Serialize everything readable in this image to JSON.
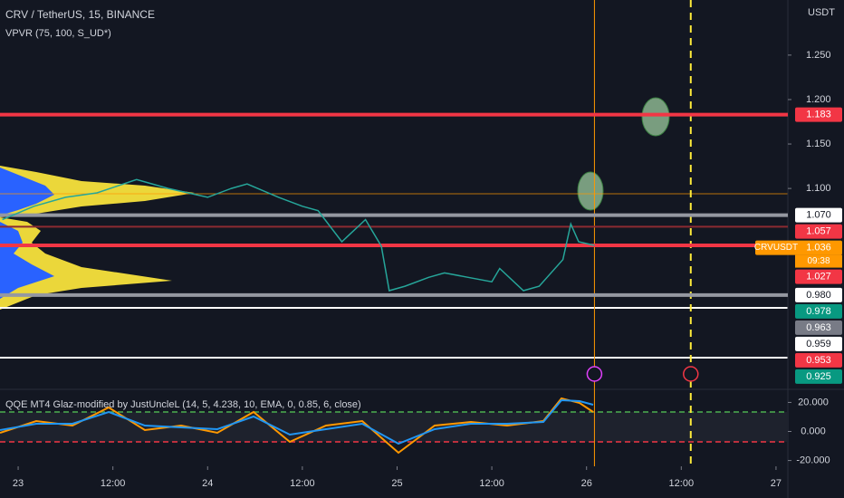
{
  "chart_data": {
    "type": "line",
    "title": "CRV / TetherUS, 15, BINANCE",
    "subtitle": "VPVR (75, 100, S_UD*)",
    "currency": "USDT",
    "x": [
      -2,
      2,
      6,
      10,
      15,
      19,
      24,
      27,
      29,
      33,
      36,
      38,
      41,
      44,
      46,
      47,
      49,
      52,
      54,
      57,
      60,
      61,
      64,
      66,
      69,
      70,
      71,
      73
    ],
    "values": [
      1.065,
      1.08,
      1.09,
      1.095,
      1.11,
      1.1,
      1.09,
      1.1,
      1.105,
      1.09,
      1.08,
      1.075,
      1.04,
      1.065,
      1.035,
      0.985,
      0.99,
      1.0,
      1.005,
      1.0,
      0.995,
      1.01,
      0.985,
      0.99,
      1.02,
      1.06,
      1.04,
      1.036
    ],
    "color": "#26a69a",
    "xlim": [
      -2.3,
      97.5
    ],
    "xticks": [
      {
        "value": 0,
        "label": "23"
      },
      {
        "value": 12,
        "label": "12:00"
      },
      {
        "value": 24,
        "label": "24"
      },
      {
        "value": 36,
        "label": "12:00"
      },
      {
        "value": 48,
        "label": "25"
      },
      {
        "value": 60,
        "label": "12:00"
      },
      {
        "value": 72,
        "label": "26"
      },
      {
        "value": 84,
        "label": "12:00"
      },
      {
        "value": 96,
        "label": "27"
      }
    ],
    "ylim": [
      0.874,
      1.312
    ],
    "yticks": [
      {
        "value": 1.25,
        "label": "1.250"
      },
      {
        "value": 1.2,
        "label": "1.200"
      },
      {
        "value": 1.15,
        "label": "1.150"
      },
      {
        "value": 1.1,
        "label": "1.100"
      }
    ],
    "levels": [
      {
        "value": 1.183,
        "label": "1.183",
        "color": "#f23645",
        "line": "#f23645"
      },
      {
        "value": 1.07,
        "label": "1.070",
        "color": "#ffffff",
        "line": "#9598a1"
      },
      {
        "value": 1.057,
        "label": "1.057",
        "color": "#f23645",
        "line": "#8b2a31"
      },
      {
        "value": 1.027,
        "label": "1.027",
        "color": "#f23645"
      },
      {
        "value": 0.98,
        "label": "0.980",
        "color": "#ffffff",
        "line": "#9598a1"
      },
      {
        "value": 0.978,
        "label": "0.978",
        "color": "#089981"
      },
      {
        "value": 0.963,
        "label": "0.963",
        "color": "#787b86"
      },
      {
        "value": 0.959,
        "label": "0.959",
        "color": "#ffffff"
      },
      {
        "value": 0.953,
        "label": "0.953",
        "color": "#f23645"
      },
      {
        "value": 0.925,
        "label": "0.925",
        "color": "#089981"
      }
    ],
    "ticker": {
      "name": "CRVUSDT",
      "value": 1.036,
      "label": "1.036",
      "countdown": "09:38",
      "color": "#ff9800",
      "line": "#f23645"
    },
    "markers": [
      {
        "x": 73,
        "color": "#ff9800"
      },
      {
        "x": 85.2,
        "color": "#ffeb3b"
      }
    ],
    "oscillator": {
      "title": "QQE MT4 Glaz-modified by JustUncleL (14, 5, 4.238, 10, EMA, 0, 0.85, 6, close)",
      "yticks": [
        {
          "value": 20,
          "label": "20.000"
        },
        {
          "value": 0,
          "label": "0.000"
        },
        {
          "value": -20,
          "label": "-20.000"
        }
      ],
      "ylim": [
        -24,
        29
      ]
    }
  }
}
